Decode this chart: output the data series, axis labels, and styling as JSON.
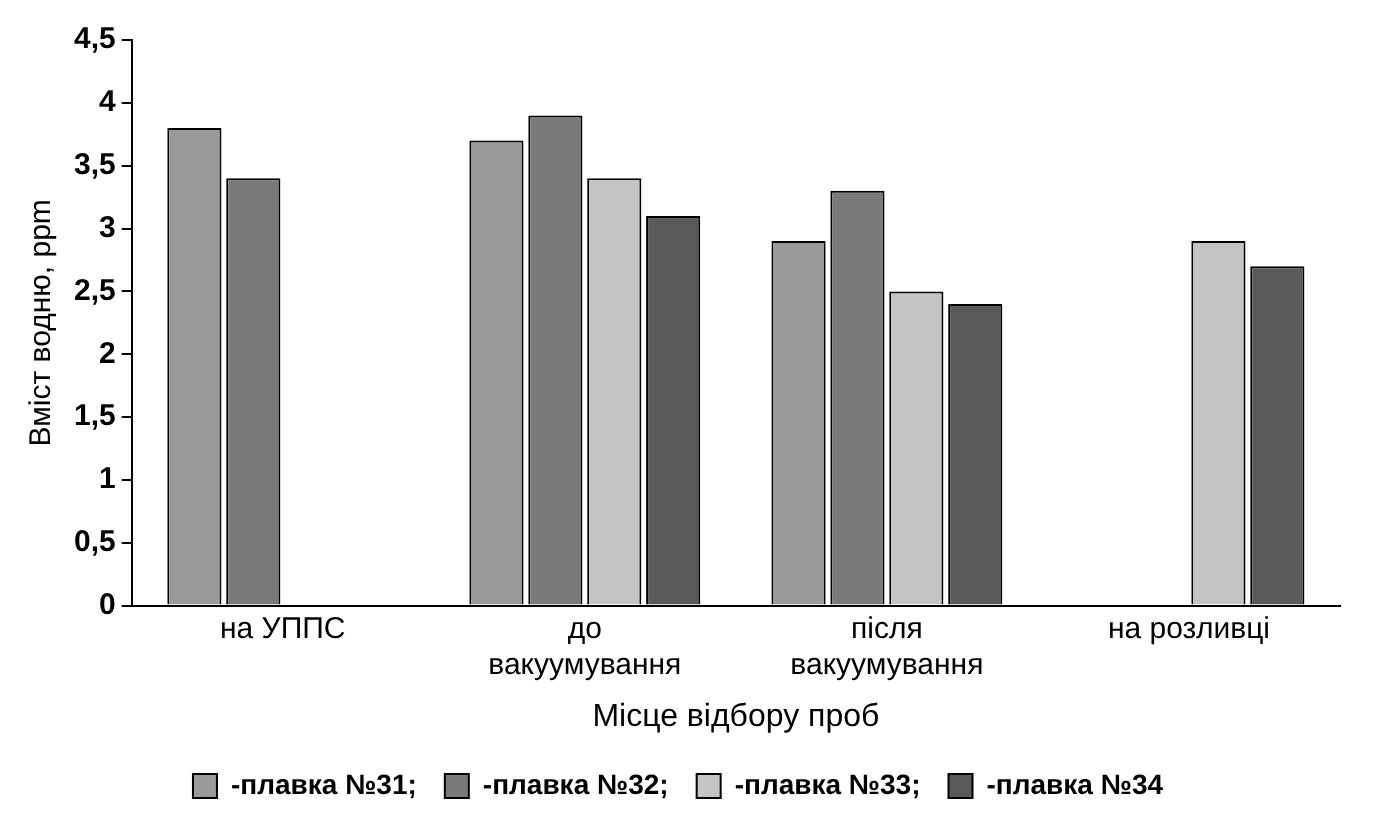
{
  "chart_data": {
    "type": "bar",
    "xlabel": "Місце відбору проб",
    "ylabel": "Вміст водню, ppm",
    "categories": [
      "на УППС",
      "до вакуумування",
      "після вакуумування",
      "на розливці"
    ],
    "series": [
      {
        "name": "-плавка №31;",
        "color": "#9a9a9a",
        "values": [
          3.8,
          3.7,
          2.9,
          null
        ]
      },
      {
        "name": "-плавка №32;",
        "color": "#7a7a7a",
        "values": [
          3.4,
          3.9,
          3.3,
          null
        ]
      },
      {
        "name": "-плавка №33;",
        "color": "#c4c4c4",
        "values": [
          null,
          3.4,
          2.5,
          2.9
        ]
      },
      {
        "name": "-плавка №34",
        "color": "#5a5a5a",
        "values": [
          null,
          3.1,
          2.4,
          2.7
        ]
      }
    ],
    "ylim": [
      0,
      4.5
    ],
    "yticks": [
      {
        "value": 0,
        "label": "0"
      },
      {
        "value": 0.5,
        "label": "0,5"
      },
      {
        "value": 1,
        "label": "1"
      },
      {
        "value": 1.5,
        "label": "1,5"
      },
      {
        "value": 2,
        "label": "2"
      },
      {
        "value": 2.5,
        "label": "2,5"
      },
      {
        "value": 3,
        "label": "3"
      },
      {
        "value": 3.5,
        "label": "3,5"
      },
      {
        "value": 4,
        "label": "4"
      },
      {
        "value": 4.5,
        "label": "4,5"
      }
    ],
    "grid": false,
    "legend": "bottom"
  }
}
